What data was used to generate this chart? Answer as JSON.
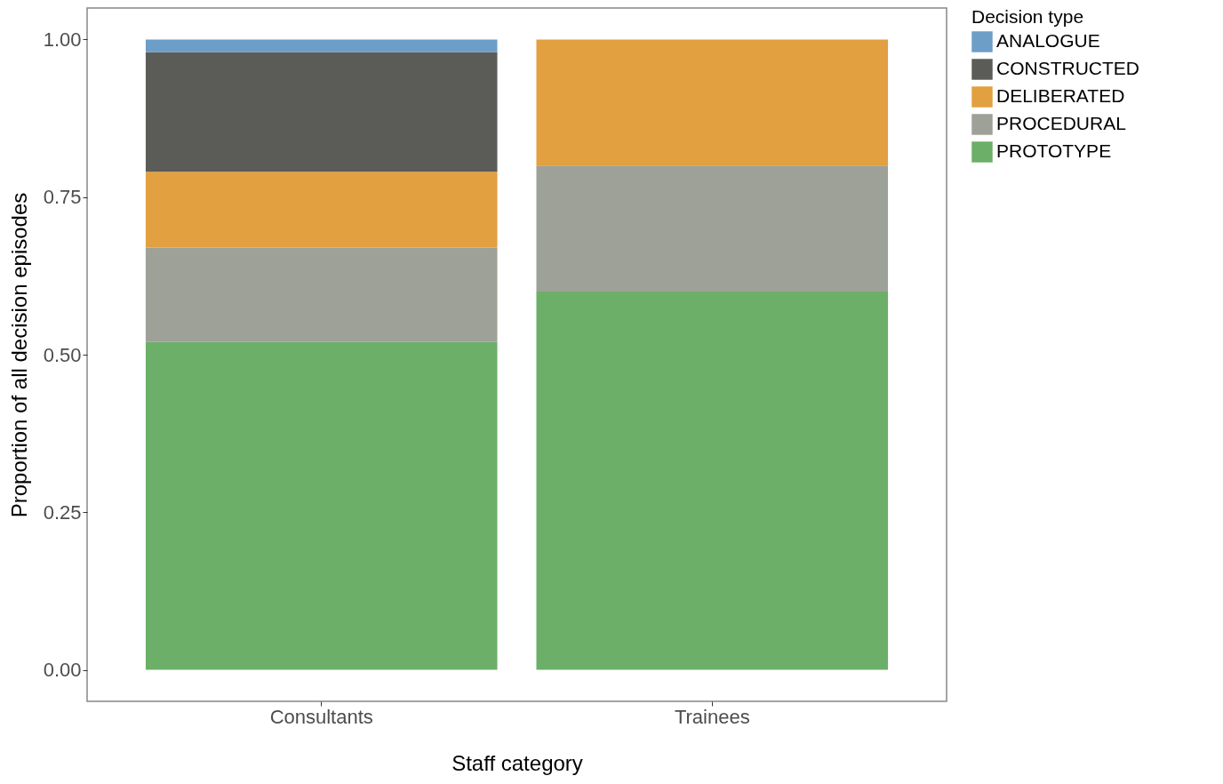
{
  "chart_data": {
    "type": "bar",
    "stacked": true,
    "xlabel": "Staff category",
    "ylabel": "Proportion of all decision episodes",
    "legend_title": "Decision type",
    "legend": "right",
    "grid": false,
    "categories": [
      "Consultants",
      "Trainees"
    ],
    "series": [
      {
        "name": "PROTOTYPE",
        "color": "#6caf68",
        "values": [
          0.52,
          0.6
        ]
      },
      {
        "name": "PROCEDURAL",
        "color": "#9ea197",
        "values": [
          0.15,
          0.2
        ]
      },
      {
        "name": "DELIBERATED",
        "color": "#e2a040",
        "values": [
          0.12,
          0.2
        ]
      },
      {
        "name": "CONSTRUCTED",
        "color": "#5b5c57",
        "values": [
          0.19,
          0
        ]
      },
      {
        "name": "ANALOGUE",
        "color": "#6c9ec8",
        "values": [
          0.02,
          0
        ]
      }
    ],
    "ylim": [
      -0.05,
      1.05
    ],
    "yticks": [
      {
        "value": 0,
        "label": "0.00"
      },
      {
        "value": 0.25,
        "label": "0.25"
      },
      {
        "value": 0.5,
        "label": "0.50"
      },
      {
        "value": 0.75,
        "label": "0.75"
      },
      {
        "value": 1,
        "label": "1.00"
      }
    ]
  }
}
